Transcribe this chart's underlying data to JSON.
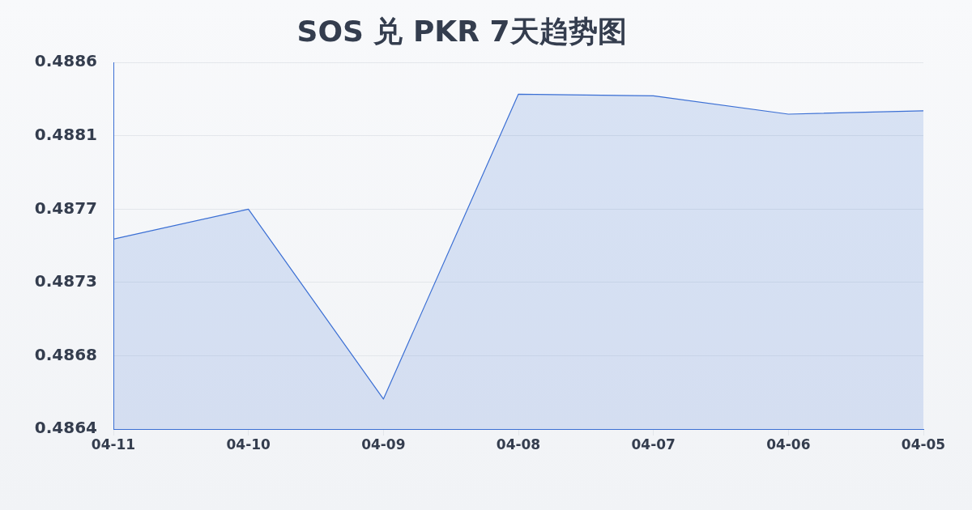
{
  "chart_data": {
    "type": "area",
    "title": "SOS 兑 PKR 7天趋势图",
    "categories": [
      "04-11",
      "04-10",
      "04-09",
      "04-08",
      "04-07",
      "04-06",
      "04-05"
    ],
    "values": [
      0.48752,
      0.4877,
      0.48656,
      0.48839,
      0.48838,
      0.48827,
      0.48829
    ],
    "color": "#3b6fd4",
    "ylim": [
      0.48638,
      0.48858
    ],
    "yticks": [
      {
        "value": 0.48638,
        "label": "0.4864"
      },
      {
        "value": 0.48682,
        "label": "0.4868"
      },
      {
        "value": 0.48726,
        "label": "0.4873"
      },
      {
        "value": 0.4877,
        "label": "0.4877"
      },
      {
        "value": 0.48814,
        "label": "0.4881"
      },
      {
        "value": 0.48858,
        "label": "0.4886"
      }
    ],
    "grid": "y"
  }
}
